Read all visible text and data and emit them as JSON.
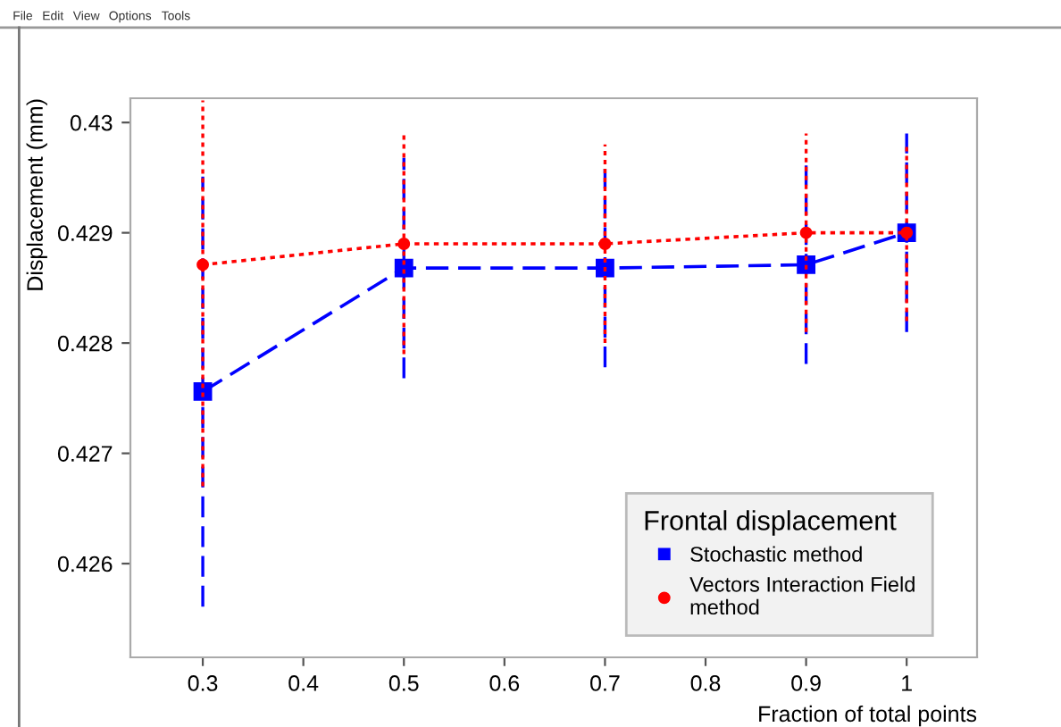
{
  "chart_data": {
    "type": "line",
    "xlabel": "Fraction of total points",
    "ylabel": "Displacement (mm)",
    "legend_title": "Frontal displacement",
    "annotations": [
      "File",
      "Edit",
      "View",
      "Options",
      "Tools"
    ],
    "x": [
      0.3,
      0.5,
      0.7,
      0.9,
      1
    ],
    "series": [
      {
        "name": "Stochastic method",
        "color": "#0000ff",
        "marker": "square",
        "line_style": "dashed",
        "values": [
          0.42756,
          0.42868,
          0.42868,
          0.42871,
          0.429
        ],
        "errors": [
          0.00195,
          0.001,
          0.0009,
          0.0009,
          0.0009
        ]
      },
      {
        "name": "Vectors Interaction Field\nmethod",
        "color": "#ff0000",
        "marker": "circle",
        "line_style": "dotted",
        "values": [
          0.42871,
          0.4289,
          0.4289,
          0.429,
          0.429
        ],
        "errors": [
          [
            0.4267,
            0.4302
          ],
          0.001,
          0.0009,
          0.0009,
          0.0008
        ]
      }
    ],
    "xlim": [
      0.228,
      1.07
    ],
    "ylim": [
      0.42515,
      0.43022
    ],
    "xticks": [
      0.3,
      0.4,
      0.5,
      0.6,
      0.7,
      0.8,
      0.9,
      1
    ],
    "yticks": [
      0.426,
      0.427,
      0.428,
      0.429,
      0.43
    ],
    "legend": "bottom right",
    "grid": false
  }
}
